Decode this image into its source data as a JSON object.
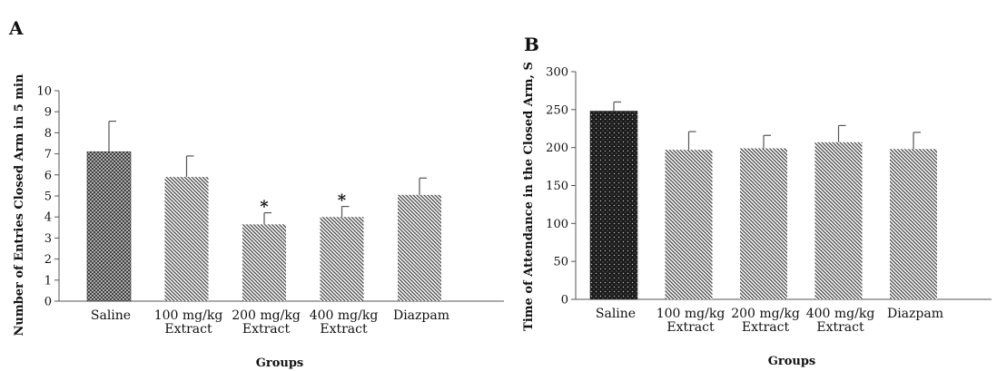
{
  "chart_data": [
    {
      "panel": "A",
      "type": "bar",
      "xlabel": "Groups",
      "ylabel": "Number of Entries Closed Arm in 5 min",
      "ylim": [
        0,
        10
      ],
      "yticks": [
        0,
        1,
        2,
        3,
        4,
        5,
        6,
        7,
        8,
        9,
        10
      ],
      "categories": [
        [
          "Saline"
        ],
        [
          "100 mg/kg",
          "Extract"
        ],
        [
          "200 mg/kg",
          "Extract"
        ],
        [
          "400 mg/kg",
          "Extract"
        ],
        [
          "Diazpam"
        ]
      ],
      "values": [
        7.1,
        5.9,
        3.65,
        4.0,
        5.05
      ],
      "errors": [
        1.45,
        1.0,
        0.55,
        0.5,
        0.8
      ],
      "annotations": [
        "",
        "",
        "*",
        "*",
        ""
      ],
      "patterns": [
        "crosshatch",
        "diagonal",
        "diagonal",
        "diagonal",
        "diagonal"
      ],
      "grid": false
    },
    {
      "panel": "B",
      "type": "bar",
      "xlabel": "Groups",
      "ylabel": "Time of Attendance in the Closed Arm, S",
      "ylim": [
        0,
        300
      ],
      "yticks": [
        0,
        50,
        100,
        150,
        200,
        250,
        300
      ],
      "categories": [
        [
          "Saline"
        ],
        [
          "100 mg/kg",
          "Extract"
        ],
        [
          "200 mg/kg",
          "Extract"
        ],
        [
          "400 mg/kg",
          "Extract"
        ],
        [
          "Diazpam"
        ]
      ],
      "values": [
        248,
        197,
        199,
        207,
        198
      ],
      "errors": [
        12,
        24,
        17,
        22,
        22
      ],
      "annotations": [
        "",
        "",
        "",
        "",
        ""
      ],
      "patterns": [
        "dots",
        "diagonal",
        "diagonal",
        "diagonal",
        "diagonal"
      ],
      "grid": false
    }
  ]
}
